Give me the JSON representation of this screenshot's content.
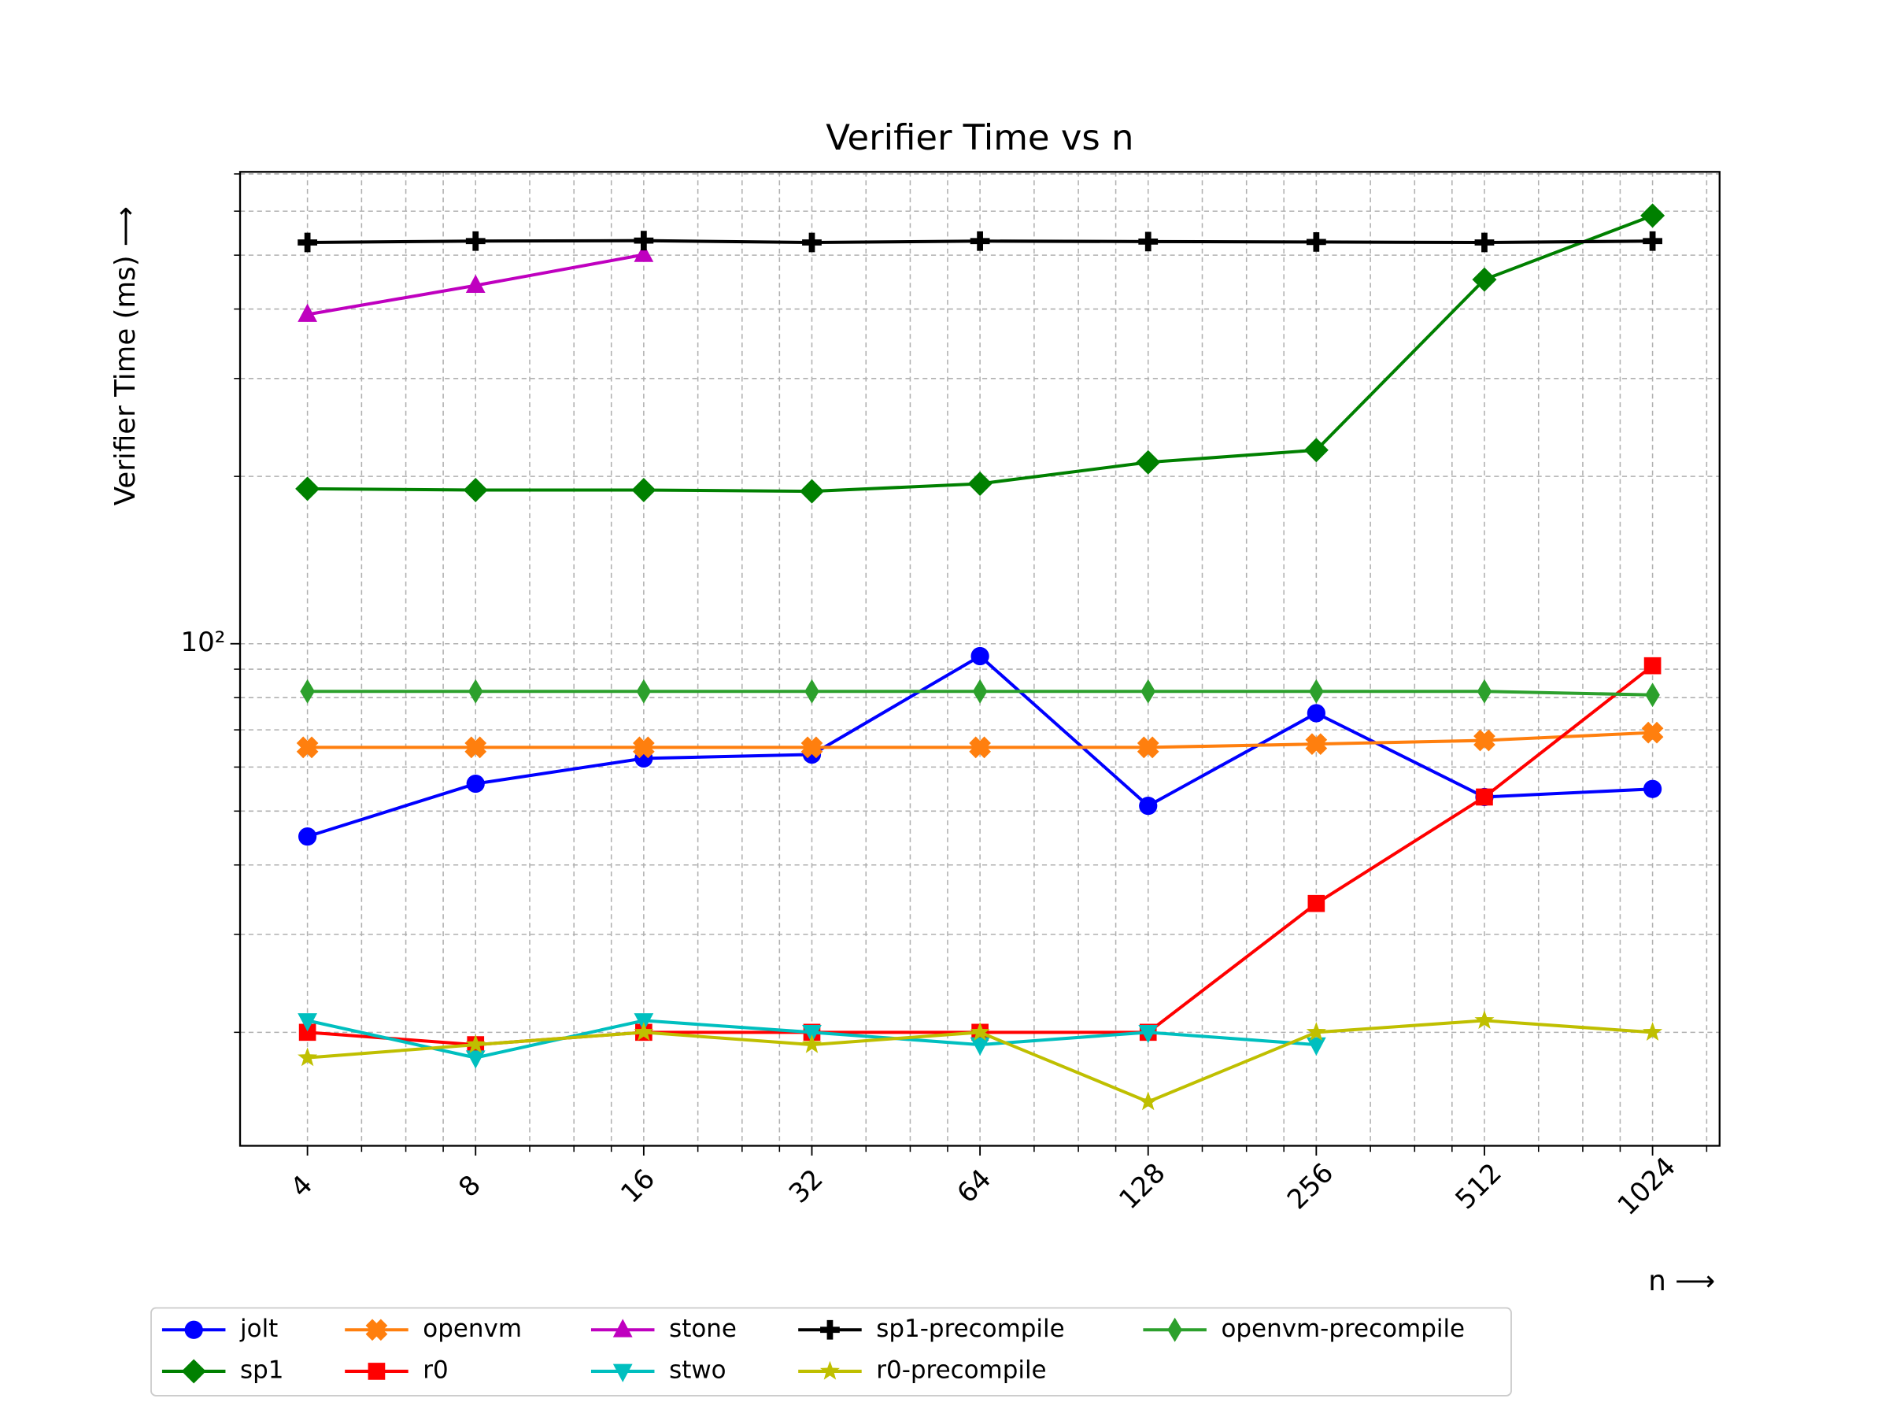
{
  "chart_data": {
    "type": "line",
    "title": "Verifier Time vs n",
    "xlabel": "n ⟶",
    "ylabel": "Verifier Time (ms) ⟶",
    "xscale": "log",
    "yscale": "log",
    "grid": true,
    "legend": "bottom",
    "x": [
      4,
      8,
      16,
      32,
      64,
      128,
      256,
      512,
      1024
    ],
    "xlim": [
      3.03,
      1350
    ],
    "xticks": [
      4,
      8,
      16,
      32,
      64,
      128,
      256,
      512,
      1024
    ],
    "xminorticks": [
      5,
      6,
      7,
      10,
      12,
      14,
      20,
      24,
      28,
      40,
      48,
      56,
      80,
      96,
      112,
      160,
      192,
      224,
      320,
      384,
      448,
      640,
      768,
      896,
      1280
    ],
    "ylim": [
      12.5,
      706
    ],
    "yticks": [
      {
        "value": 100,
        "label": "10²"
      }
    ],
    "yminorticks": [
      20,
      30,
      40,
      50,
      60,
      70,
      80,
      90,
      200,
      300,
      400,
      500,
      600,
      700
    ],
    "series": [
      {
        "name": "jolt",
        "color": "#0000ff",
        "marker": "circle",
        "values": [
          45.0,
          56.0,
          62.2,
          63.2,
          95,
          51.1,
          75,
          53,
          54.8
        ]
      },
      {
        "name": "sp1",
        "color": "#008000",
        "marker": "diamond",
        "values": [
          190,
          189,
          189,
          188,
          194,
          212,
          223,
          452,
          589
        ]
      },
      {
        "name": "openvm",
        "color": "#ff7f0e",
        "marker": "x",
        "values": [
          65.1,
          65.1,
          65.1,
          65.1,
          65.1,
          65.1,
          66,
          67,
          69.2
        ]
      },
      {
        "name": "r0",
        "color": "#ff0000",
        "marker": "square",
        "values": [
          20,
          19,
          20,
          20,
          20,
          20,
          34.1,
          53,
          91.3
        ]
      },
      {
        "name": "stone",
        "color": "#bf00bf",
        "marker": "triangle-up",
        "values": [
          391,
          441,
          501,
          null,
          null,
          null,
          null,
          null,
          null
        ]
      },
      {
        "name": "stwo",
        "color": "#00bfbf",
        "marker": "triangle-down",
        "values": [
          21,
          18,
          21,
          20,
          19,
          20,
          19,
          null,
          null
        ]
      },
      {
        "name": "sp1-precompile",
        "color": "#000000",
        "marker": "plus",
        "values": [
          527,
          530,
          531,
          527,
          530,
          529,
          528,
          527,
          530
        ]
      },
      {
        "name": "r0-precompile",
        "color": "#bfbf00",
        "marker": "star",
        "values": [
          18,
          19,
          20,
          19,
          20,
          15,
          20,
          21,
          20
        ]
      },
      {
        "name": "openvm-precompile",
        "color": "#2ca02c",
        "marker": "thin-diamond",
        "values": [
          82.1,
          82.1,
          82.1,
          82.1,
          82.1,
          82.1,
          82.1,
          82.1,
          80.9
        ]
      }
    ]
  }
}
